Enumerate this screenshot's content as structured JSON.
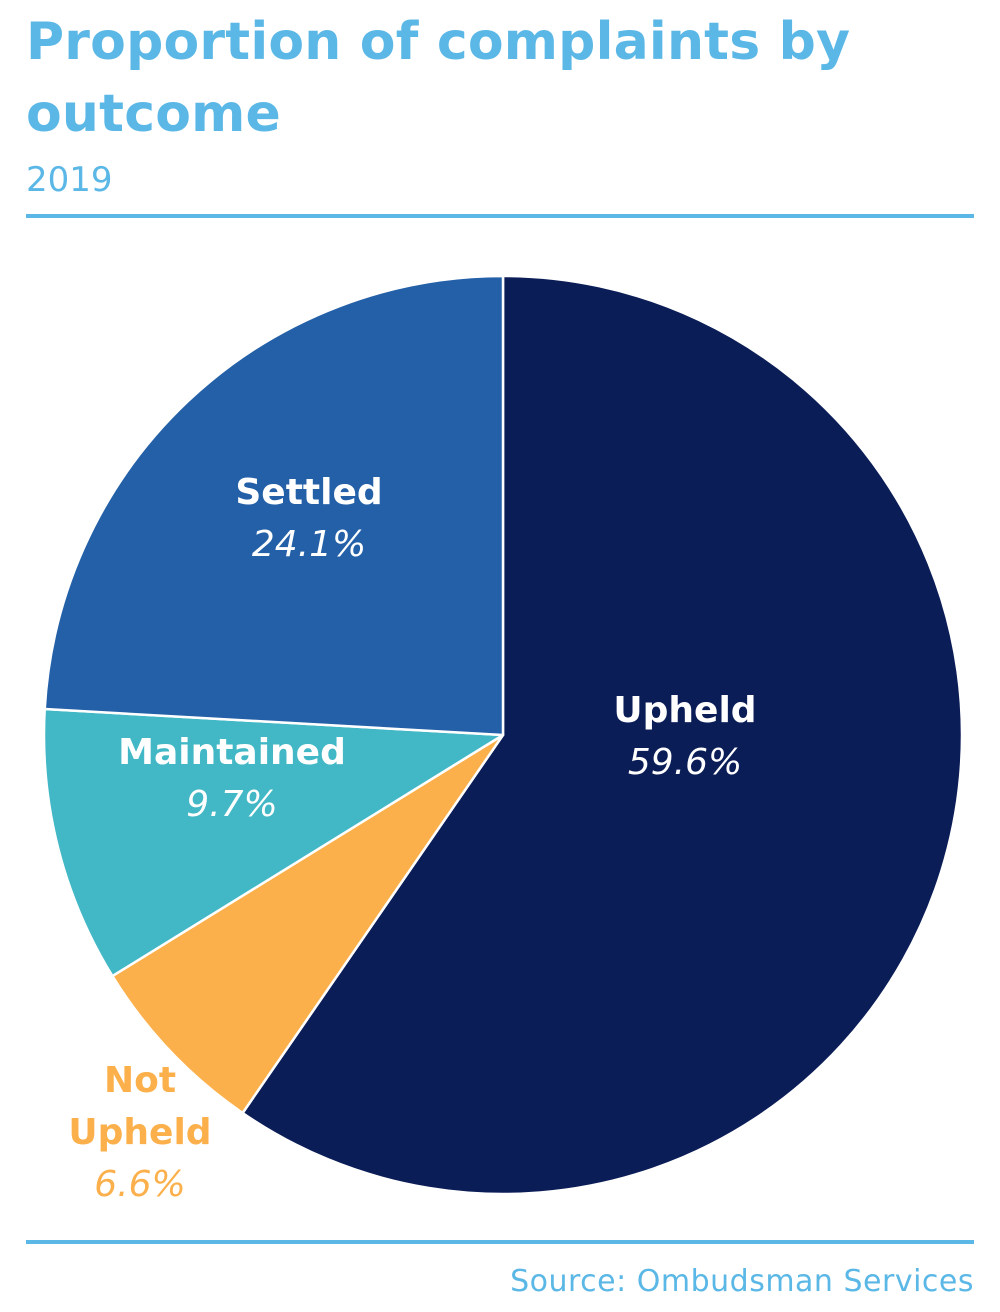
{
  "chart_data": {
    "type": "pie",
    "title": "Proportion of complaints by outcome",
    "subtitle": "2019",
    "source": "Source: Ombudsman Services",
    "slices": [
      {
        "name": "Upheld",
        "value": 59.6,
        "label": "59.6%",
        "color": "#0b1d57",
        "text_color": "#ffffff"
      },
      {
        "name": "Not Upheld",
        "value": 6.6,
        "label": "6.6%",
        "color": "#fbb04b",
        "text_color": "#fbb04b"
      },
      {
        "name": "Maintained",
        "value": 9.7,
        "label": "9.7%",
        "color": "#42b7c5",
        "text_color": "#ffffff"
      },
      {
        "name": "Settled",
        "value": 24.1,
        "label": "24.1%",
        "color": "#2360a8",
        "text_color": "#ffffff"
      }
    ],
    "start": "12 o'clock",
    "direction": "clockwise",
    "legend": "none"
  },
  "accent_color": "#5bb8e6"
}
